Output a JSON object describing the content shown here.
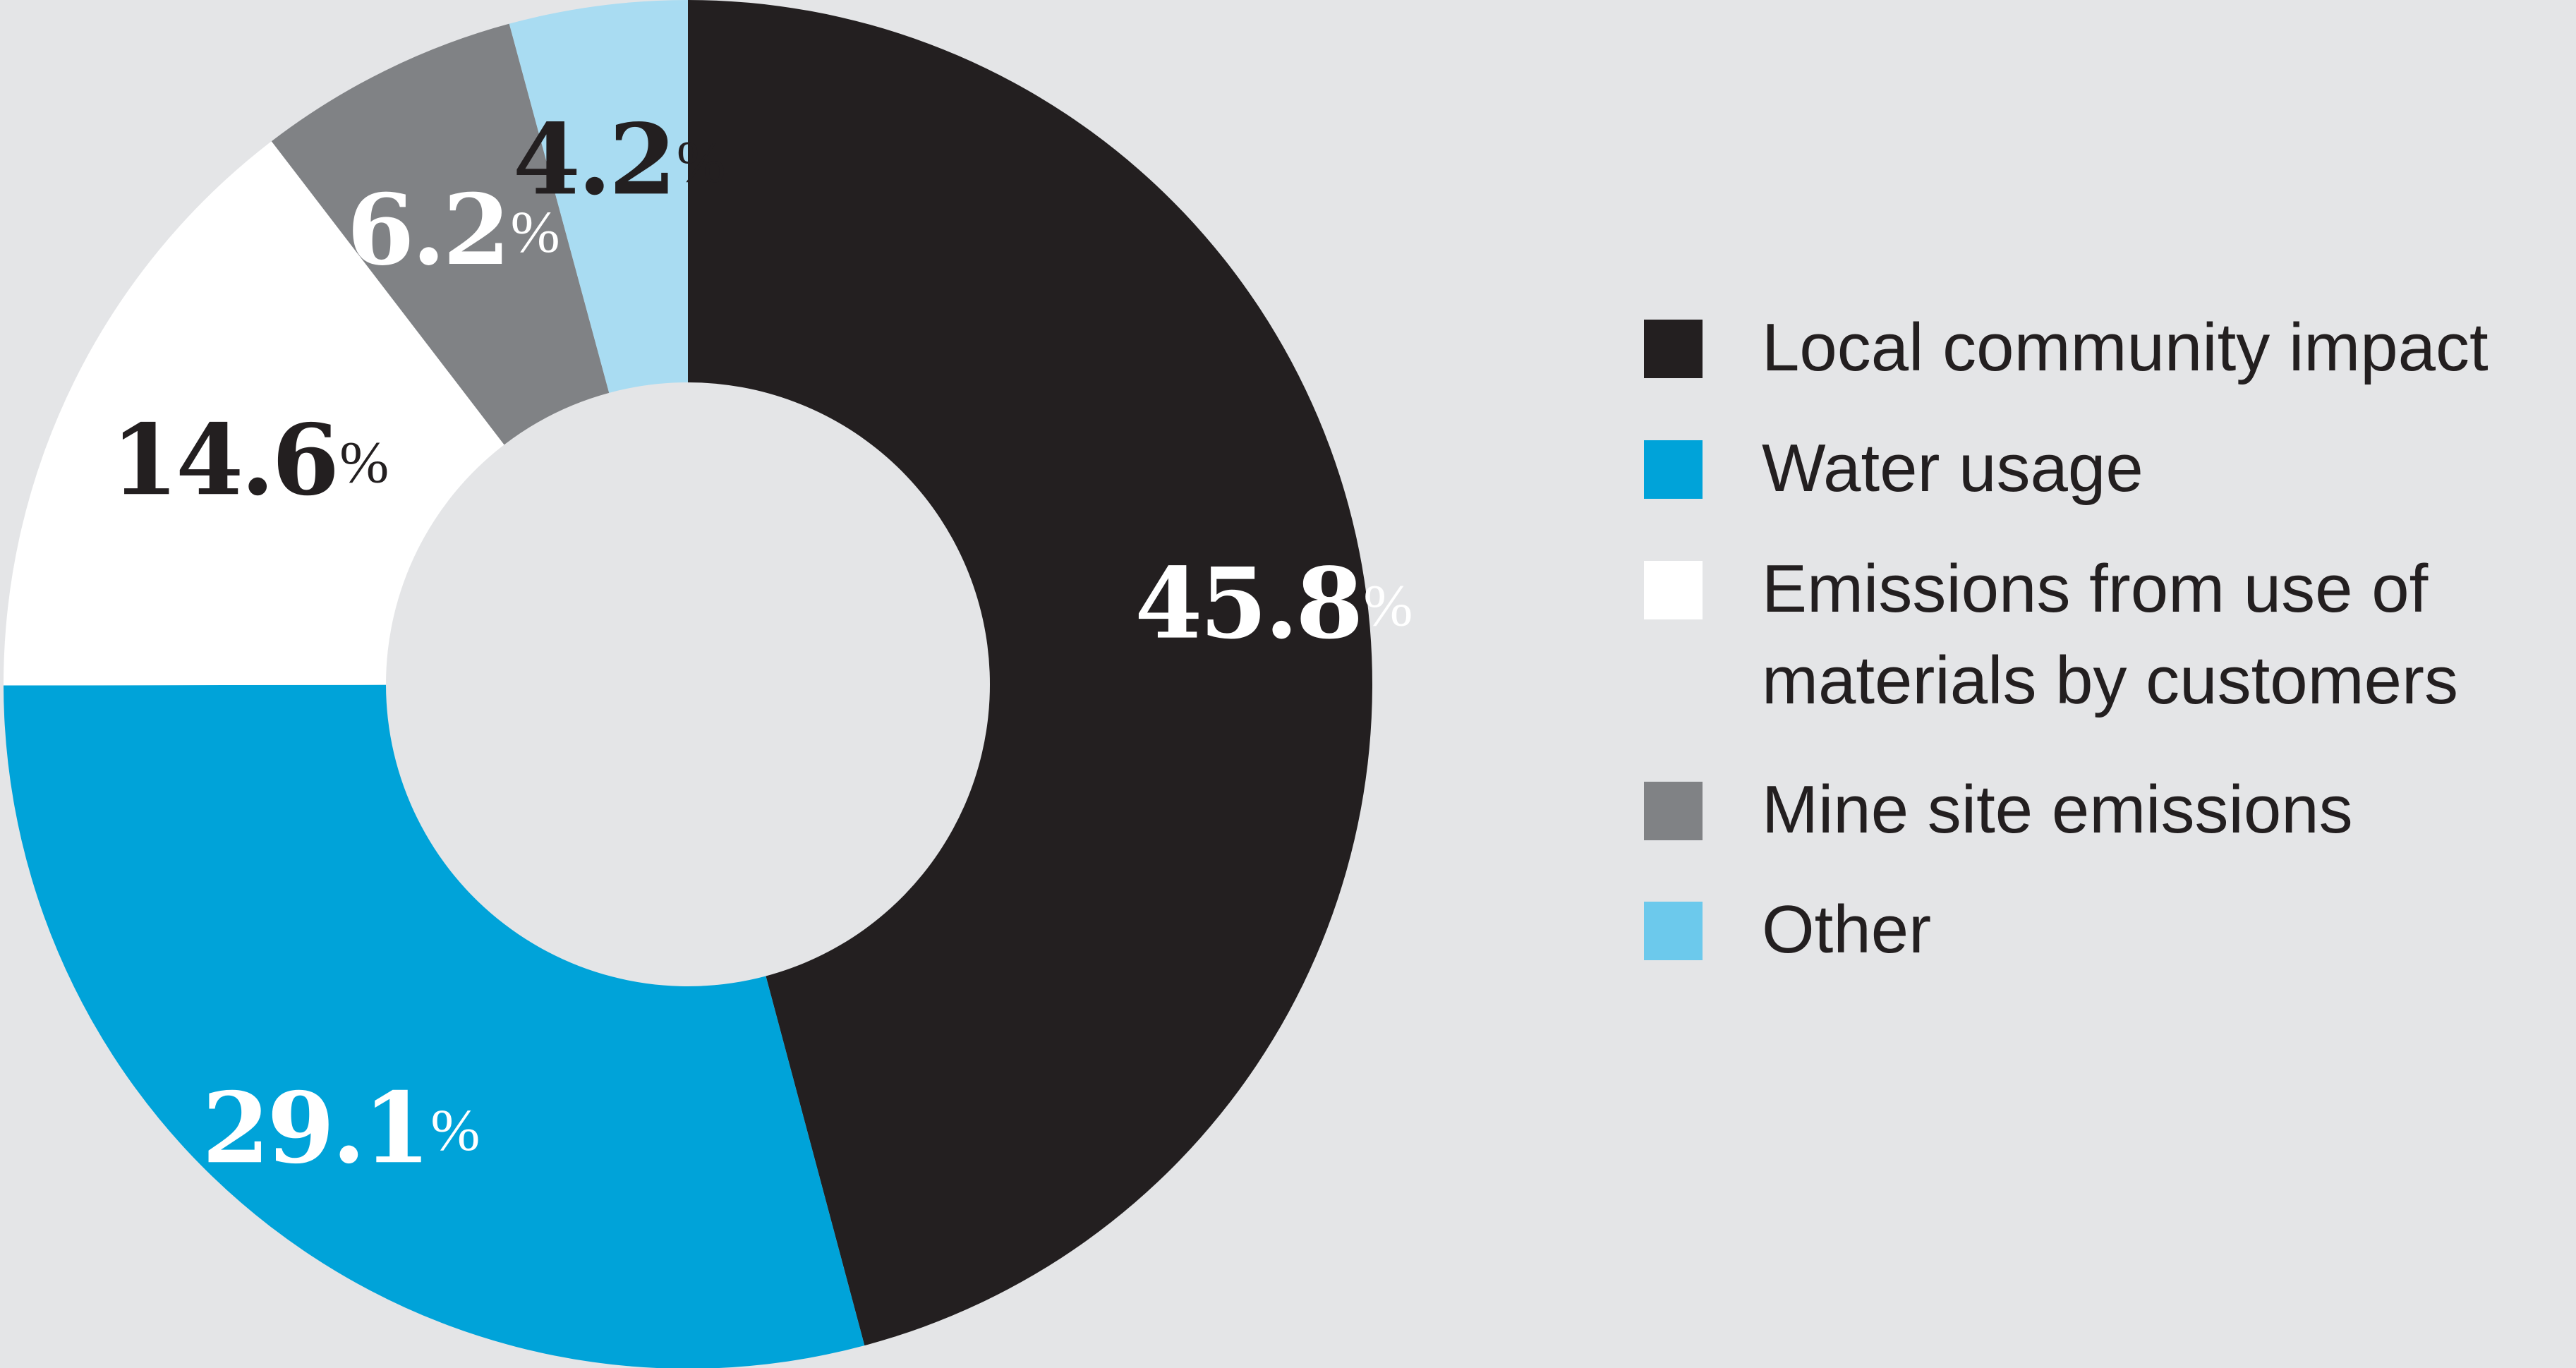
{
  "chart_data": {
    "type": "pie",
    "variant": "donut",
    "title": "",
    "slices": [
      {
        "label": "Local community impact",
        "value": 45.8,
        "display": "45.8",
        "color": "#231f20",
        "label_color": "#ffffff"
      },
      {
        "label": "Water usage",
        "value": 29.1,
        "display": "29.1",
        "color": "#00a3d9",
        "label_color": "#ffffff"
      },
      {
        "label": "Emissions from use of materials by customers",
        "value": 14.6,
        "display": "14.6",
        "color": "#ffffff",
        "label_color": "#231f20"
      },
      {
        "label": "Mine site emissions",
        "value": 6.2,
        "display": "6.2",
        "color": "#808285",
        "label_color": "#ffffff"
      },
      {
        "label": "Other",
        "value": 4.2,
        "display": "4.2",
        "color": "#a9dcf2",
        "label_color": "#231f20"
      }
    ],
    "value_suffix": "%",
    "start_angle": "12 o'clock",
    "direction": "clockwise",
    "legend_position": "right",
    "legend": [
      {
        "lines": [
          "Local community impact"
        ],
        "color": "#231f20"
      },
      {
        "lines": [
          "Water usage"
        ],
        "color": "#00a3d9"
      },
      {
        "lines": [
          "Emissions from use of",
          "materials by customers"
        ],
        "color": "#ffffff"
      },
      {
        "lines": [
          "Mine site emissions"
        ],
        "color": "#808285"
      },
      {
        "lines": [
          "Other"
        ],
        "color": "#6cc9ec"
      }
    ]
  },
  "colors": {
    "background": "#e4e5e7",
    "text_dark": "#231f20"
  }
}
